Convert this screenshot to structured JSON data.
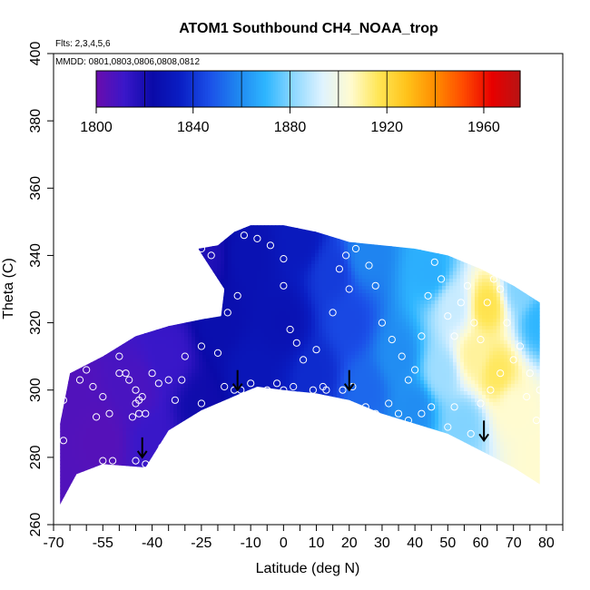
{
  "chart_data": {
    "type": "heatmap",
    "title": "ATOM1 Southbound CH4_NOAA_trop",
    "flights_label": "Flts: 2,3,4,5,6",
    "dates_label": "MMDD: 0801,0803,0806,0808,0812",
    "xlabel": "Latitude (deg N)",
    "ylabel": "Theta (C)",
    "xlim": [
      -70,
      85
    ],
    "ylim": [
      260,
      400
    ],
    "x_ticks": [
      -70,
      -55,
      -40,
      -25,
      -10,
      0,
      10,
      20,
      30,
      40,
      50,
      60,
      70,
      80
    ],
    "y_ticks": [
      260,
      280,
      300,
      320,
      340,
      360,
      380,
      400
    ],
    "colorbar": {
      "min": 1800,
      "max": 1975,
      "labels": [
        1800,
        1840,
        1880,
        1920,
        1960
      ],
      "colors": [
        "#6a0dad",
        "#3a17c9",
        "#0a0aa8",
        "#0a1fc4",
        "#1b4fe8",
        "#1f86f0",
        "#2eb6ff",
        "#8fd8ff",
        "#dff3ff",
        "#fffbd0",
        "#ffe655",
        "#ffc21a",
        "#ff8c00",
        "#ff4a00",
        "#e80000",
        "#b81414"
      ]
    },
    "field_anchors": [
      {
        "lat": -68,
        "theta": 265,
        "value": 1806
      },
      {
        "lat": -65,
        "theta": 300,
        "value": 1806
      },
      {
        "lat": -55,
        "theta": 285,
        "value": 1805
      },
      {
        "lat": -45,
        "theta": 300,
        "value": 1808
      },
      {
        "lat": -40,
        "theta": 285,
        "value": 1812
      },
      {
        "lat": -35,
        "theta": 310,
        "value": 1812
      },
      {
        "lat": -25,
        "theta": 295,
        "value": 1822
      },
      {
        "lat": -25,
        "theta": 340,
        "value": 1818
      },
      {
        "lat": -20,
        "theta": 320,
        "value": 1826
      },
      {
        "lat": -10,
        "theta": 340,
        "value": 1828
      },
      {
        "lat": -10,
        "theta": 305,
        "value": 1830
      },
      {
        "lat": 0,
        "theta": 320,
        "value": 1828
      },
      {
        "lat": 5,
        "theta": 345,
        "value": 1832
      },
      {
        "lat": 10,
        "theta": 305,
        "value": 1838
      },
      {
        "lat": 15,
        "theta": 335,
        "value": 1842
      },
      {
        "lat": 20,
        "theta": 320,
        "value": 1845
      },
      {
        "lat": 25,
        "theta": 300,
        "value": 1852
      },
      {
        "lat": 25,
        "theta": 340,
        "value": 1858
      },
      {
        "lat": 35,
        "theta": 310,
        "value": 1860
      },
      {
        "lat": 40,
        "theta": 295,
        "value": 1860
      },
      {
        "lat": 45,
        "theta": 335,
        "value": 1868
      },
      {
        "lat": 48,
        "theta": 305,
        "value": 1884
      },
      {
        "lat": 52,
        "theta": 325,
        "value": 1890
      },
      {
        "lat": 55,
        "theta": 290,
        "value": 1880
      },
      {
        "lat": 58,
        "theta": 310,
        "value": 1910
      },
      {
        "lat": 62,
        "theta": 325,
        "value": 1918
      },
      {
        "lat": 65,
        "theta": 305,
        "value": 1916
      },
      {
        "lat": 70,
        "theta": 295,
        "value": 1905
      },
      {
        "lat": 72,
        "theta": 330,
        "value": 1880
      },
      {
        "lat": 78,
        "theta": 280,
        "value": 1905
      },
      {
        "lat": 78,
        "theta": 320,
        "value": 1870
      }
    ],
    "coverage": {
      "bottom": [
        [
          -68,
          266
        ],
        [
          -63,
          275
        ],
        [
          -55,
          278
        ],
        [
          -42,
          277
        ],
        [
          -35,
          288
        ],
        [
          -25,
          294
        ],
        [
          -13,
          299
        ],
        [
          -8,
          301
        ],
        [
          0,
          300
        ],
        [
          10,
          299
        ],
        [
          20,
          297
        ],
        [
          30,
          293
        ],
        [
          40,
          290
        ],
        [
          50,
          287
        ],
        [
          60,
          282
        ],
        [
          70,
          277
        ],
        [
          78,
          272
        ]
      ],
      "top": [
        [
          -68,
          290
        ],
        [
          -65,
          305
        ],
        [
          -55,
          310
        ],
        [
          -45,
          316
        ],
        [
          -35,
          319
        ],
        [
          -25,
          321
        ],
        [
          -19,
          322
        ],
        [
          -18,
          330
        ],
        [
          -22,
          336
        ],
        [
          -26,
          342
        ],
        [
          -20,
          343
        ],
        [
          -15,
          347
        ],
        [
          -10,
          349
        ],
        [
          0,
          349
        ],
        [
          10,
          347
        ],
        [
          20,
          344
        ],
        [
          30,
          343
        ],
        [
          40,
          342
        ],
        [
          50,
          340
        ],
        [
          60,
          336
        ],
        [
          70,
          331
        ],
        [
          78,
          326
        ]
      ]
    },
    "points": [
      [
        -67,
        285
      ],
      [
        -67,
        297
      ],
      [
        -63,
        309
      ],
      [
        -60,
        306
      ],
      [
        -58,
        301
      ],
      [
        -57,
        292
      ],
      [
        -55,
        298
      ],
      [
        -53,
        293
      ],
      [
        -52,
        279
      ],
      [
        -50,
        305
      ],
      [
        -48,
        305
      ],
      [
        -47,
        303
      ],
      [
        -46,
        292
      ],
      [
        -45,
        296
      ],
      [
        -45,
        300
      ],
      [
        -44,
        293
      ],
      [
        -44,
        297
      ],
      [
        -43,
        298
      ],
      [
        -42,
        293
      ],
      [
        -42,
        278
      ],
      [
        -40,
        305
      ],
      [
        -37,
        283
      ],
      [
        -35,
        303
      ],
      [
        -33,
        297
      ],
      [
        -31,
        303
      ],
      [
        -28,
        287
      ],
      [
        -25,
        296
      ],
      [
        -20,
        311
      ],
      [
        -18,
        301
      ],
      [
        -15,
        300
      ],
      [
        -13,
        300
      ],
      [
        -10,
        302
      ],
      [
        -5,
        300
      ],
      [
        -2,
        302
      ],
      [
        0,
        300
      ],
      [
        3,
        301
      ],
      [
        7,
        298
      ],
      [
        9,
        300
      ],
      [
        12,
        301
      ],
      [
        15,
        296
      ],
      [
        18,
        300
      ],
      [
        21,
        301
      ],
      [
        25,
        295
      ],
      [
        28,
        293
      ],
      [
        32,
        296
      ],
      [
        35,
        293
      ],
      [
        38,
        291
      ],
      [
        42,
        293
      ],
      [
        45,
        295
      ],
      [
        50,
        289
      ],
      [
        52,
        295
      ],
      [
        57,
        287
      ],
      [
        60,
        296
      ],
      [
        63,
        300
      ],
      [
        66,
        305
      ],
      [
        70,
        309
      ],
      [
        74,
        298
      ],
      [
        77,
        291
      ],
      [
        -55,
        279
      ],
      [
        -45,
        279
      ],
      [
        -62,
        303
      ],
      [
        -38,
        302
      ],
      [
        -50,
        310
      ],
      [
        -30,
        310
      ],
      [
        -25,
        313
      ],
      [
        -17,
        323
      ],
      [
        -14,
        328
      ],
      [
        -25,
        342
      ],
      [
        -22,
        340
      ],
      [
        -18,
        347
      ],
      [
        -12,
        346
      ],
      [
        -8,
        345
      ],
      [
        -4,
        343
      ],
      [
        0,
        339
      ],
      [
        0,
        331
      ],
      [
        2,
        318
      ],
      [
        4,
        314
      ],
      [
        6,
        309
      ],
      [
        10,
        312
      ],
      [
        13,
        300
      ],
      [
        15,
        323
      ],
      [
        17,
        336
      ],
      [
        19,
        340
      ],
      [
        20,
        330
      ],
      [
        22,
        342
      ],
      [
        24,
        347
      ],
      [
        26,
        337
      ],
      [
        28,
        331
      ],
      [
        30,
        320
      ],
      [
        33,
        315
      ],
      [
        36,
        310
      ],
      [
        38,
        303
      ],
      [
        40,
        306
      ],
      [
        42,
        316
      ],
      [
        44,
        328
      ],
      [
        46,
        338
      ],
      [
        48,
        333
      ],
      [
        50,
        322
      ],
      [
        52,
        316
      ],
      [
        54,
        326
      ],
      [
        56,
        331
      ],
      [
        58,
        320
      ],
      [
        60,
        315
      ],
      [
        62,
        326
      ],
      [
        64,
        333
      ],
      [
        66,
        330
      ],
      [
        68,
        320
      ],
      [
        72,
        313
      ],
      [
        75,
        305
      ],
      [
        78,
        300
      ]
    ],
    "arrows": [
      {
        "lat": -43,
        "theta": 280
      },
      {
        "lat": -14,
        "theta": 300
      },
      {
        "lat": 20,
        "theta": 300
      },
      {
        "lat": 61,
        "theta": 285
      }
    ]
  }
}
